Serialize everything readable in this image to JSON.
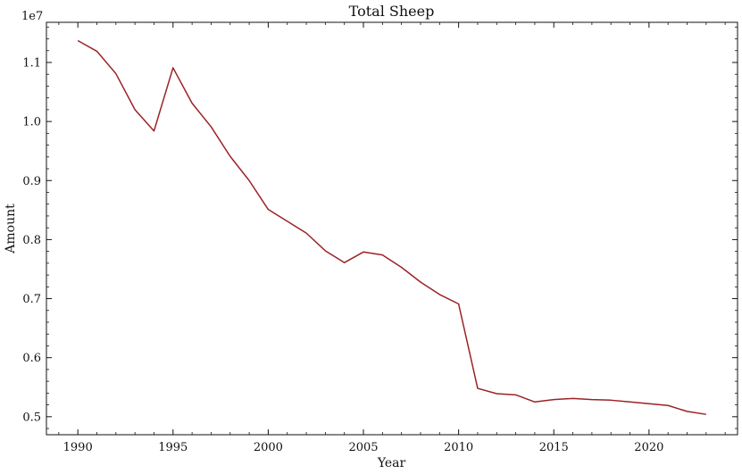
{
  "chart_data": {
    "type": "line",
    "title": "Total Sheep",
    "xlabel": "Year",
    "ylabel": "Amount",
    "y_offset_label": "1e7",
    "xlim": [
      1988.35,
      2024.65
    ],
    "ylim": [
      0.4695,
      1.168
    ],
    "xticks": [
      1990,
      1995,
      2000,
      2005,
      2010,
      2015,
      2020
    ],
    "xtick_labels": [
      "1990",
      "1995",
      "2000",
      "2005",
      "2010",
      "2015",
      "2020"
    ],
    "yticks": [
      0.5,
      0.6,
      0.7,
      0.8,
      0.9,
      1.0,
      1.1
    ],
    "ytick_labels": [
      "0.5",
      "0.6",
      "0.7",
      "0.8",
      "0.9",
      "1.0",
      "1.1"
    ],
    "grid": false,
    "series": [
      {
        "color": "#9b2226",
        "x": [
          1990,
          1991,
          1992,
          1993,
          1994,
          1995,
          1996,
          1997,
          1998,
          1999,
          2000,
          2001,
          2002,
          2003,
          2004,
          2005,
          2006,
          2007,
          2008,
          2009,
          2010,
          2011,
          2012,
          2013,
          2014,
          2015,
          2016,
          2017,
          2018,
          2019,
          2020,
          2021,
          2022,
          2023
        ],
        "values": [
          1.137,
          1.119,
          1.081,
          1.02,
          0.984,
          1.091,
          1.031,
          0.991,
          0.941,
          0.9,
          0.851,
          0.831,
          0.811,
          0.781,
          0.761,
          0.779,
          0.774,
          0.753,
          0.728,
          0.707,
          0.691,
          0.548,
          0.539,
          0.537,
          0.525,
          0.529,
          0.531,
          0.529,
          0.528,
          0.525,
          0.522,
          0.519,
          0.509,
          0.504
        ]
      }
    ]
  }
}
